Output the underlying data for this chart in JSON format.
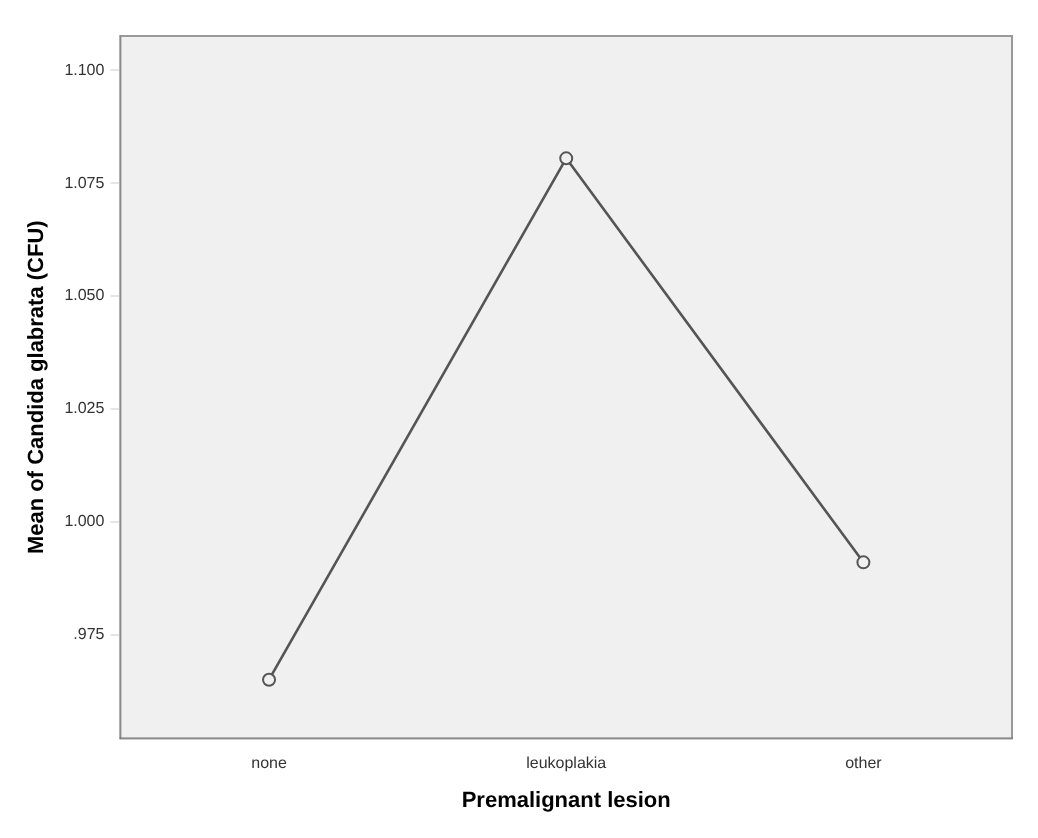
{
  "chart_data": {
    "type": "line",
    "xlabel": "Premalignant lesion",
    "ylabel": "Mean of Candida glabrata (CFU)",
    "categories": [
      "none",
      "leukoplakia",
      "other"
    ],
    "series": [
      {
        "color": "#555555",
        "values": [
          0.965,
          1.0805,
          0.991
        ]
      }
    ],
    "ylim": [
      0.952,
      1.1076
    ],
    "yticks": [
      {
        "value": 0.975,
        "label": ".975"
      },
      {
        "value": 1.0,
        "label": "1.000"
      },
      {
        "value": 1.025,
        "label": "1.025"
      },
      {
        "value": 1.05,
        "label": "1.050"
      },
      {
        "value": 1.075,
        "label": "1.075"
      },
      {
        "value": 1.1,
        "label": "1.100"
      }
    ],
    "grid": false,
    "legend": false,
    "marker": "circle",
    "line_style": "solid"
  }
}
